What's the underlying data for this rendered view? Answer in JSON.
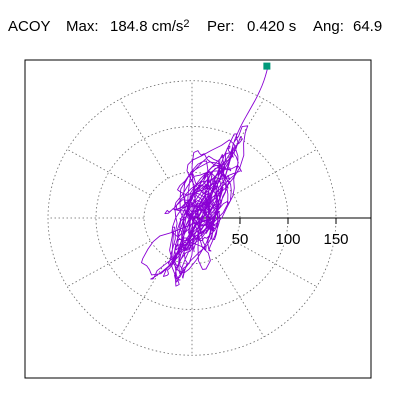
{
  "header": {
    "channel": "ACOY",
    "max_label": "Max:",
    "max_value": "184.8 cm/s",
    "max_exp": "2",
    "per_label": "Per:",
    "per_value": "0.420 s",
    "ang_label": "Ang:",
    "ang_value": "64.9"
  },
  "chart_data": {
    "type": "scatter",
    "title": "",
    "units": "cm/s²",
    "polar_rings": [
      50,
      100,
      150
    ],
    "tick_labels": [
      "50",
      "100",
      "150"
    ],
    "radial_spoke_step_deg": 30,
    "max_marker": {
      "x": 78,
      "y": 166,
      "color": "#009a7a"
    },
    "trace_color": "#8a00d4",
    "trace_seed": 7,
    "trace_count": 900,
    "grid": true
  }
}
